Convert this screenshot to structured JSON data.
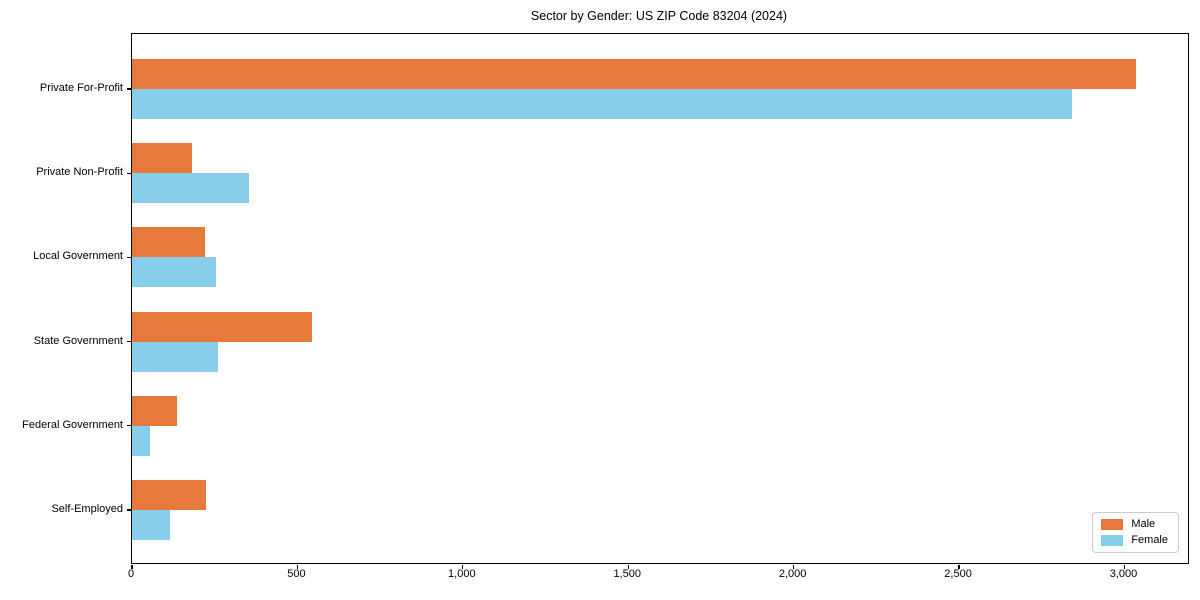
{
  "title": "Sector by Gender: US ZIP Code 83204 (2024)",
  "chart_data": {
    "type": "bar",
    "orientation": "horizontal",
    "title": "Sector by Gender: US ZIP Code 83204 (2024)",
    "categories": [
      "Private For-Profit",
      "Private Non-Profit",
      "Local Government",
      "State Government",
      "Federal Government",
      "Self-Employed"
    ],
    "series": [
      {
        "name": "Male",
        "color": "#E8793D",
        "values": [
          3035,
          180,
          220,
          545,
          135,
          225
        ]
      },
      {
        "name": "Female",
        "color": "#87CEEB",
        "values": [
          2840,
          355,
          255,
          260,
          55,
          115
        ]
      }
    ],
    "xlabel": "",
    "ylabel": "",
    "xlim": [
      0,
      3192
    ],
    "xticks": [
      0,
      500,
      1000,
      1500,
      2000,
      2500,
      3000
    ],
    "xtick_labels": [
      "0",
      "500",
      "1,000",
      "1,500",
      "2,000",
      "2,500",
      "3,000"
    ],
    "legend_position": "lower right",
    "grid": false,
    "colors": {
      "male": "#E8793D",
      "female": "#87CEEB",
      "axis": "#000000",
      "legend_border": "#cccccc",
      "background": "#ffffff"
    }
  }
}
